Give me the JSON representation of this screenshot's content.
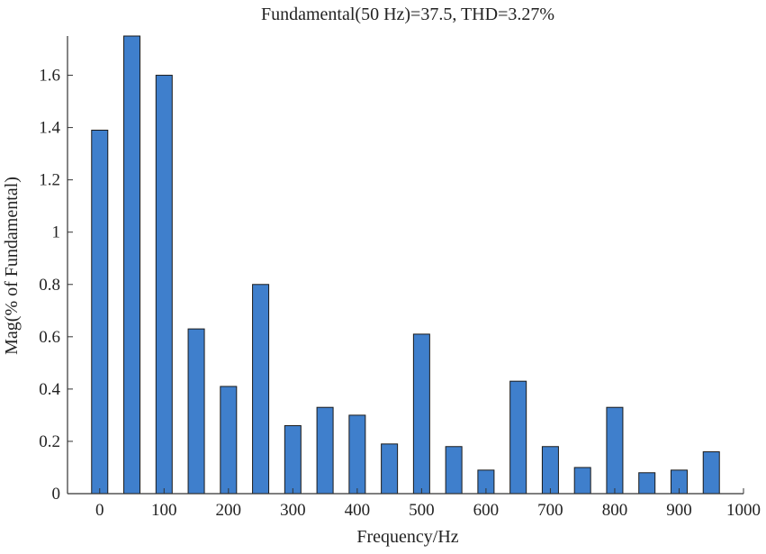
{
  "chart_data": {
    "type": "bar",
    "title": "Fundamental(50 Hz)=37.5, THD=3.27%",
    "xlabel": "Frequency/Hz",
    "ylabel": "Mag(% of Fundamental)",
    "x": [
      0,
      50,
      100,
      150,
      200,
      250,
      300,
      350,
      400,
      450,
      500,
      550,
      600,
      650,
      700,
      750,
      800,
      850,
      900,
      950
    ],
    "values": [
      1.39,
      1.75,
      1.6,
      0.63,
      0.41,
      0.8,
      0.26,
      0.33,
      0.3,
      0.19,
      0.61,
      0.18,
      0.09,
      0.43,
      0.18,
      0.1,
      0.33,
      0.08,
      0.09,
      0.16
    ],
    "xlim": [
      -50,
      1000
    ],
    "ylim": [
      0,
      1.75
    ],
    "xticks": [
      0,
      100,
      200,
      300,
      400,
      500,
      600,
      700,
      800,
      900,
      1000
    ],
    "xtick_labels": [
      "0",
      "100",
      "200",
      "300",
      "400",
      "500",
      "600",
      "700",
      "800",
      "900",
      "1000"
    ],
    "yticks": [
      0,
      0.2,
      0.4,
      0.6,
      0.8,
      1.0,
      1.2,
      1.4,
      1.6
    ],
    "ytick_labels": [
      "0",
      "0.2",
      "0.4",
      "0.6",
      "0.8",
      "1",
      "1.2",
      "1.4",
      "1.6"
    ],
    "grid": false,
    "bar_color": "#3f7fcc",
    "bar_edge_color": "#1a1a1a"
  }
}
